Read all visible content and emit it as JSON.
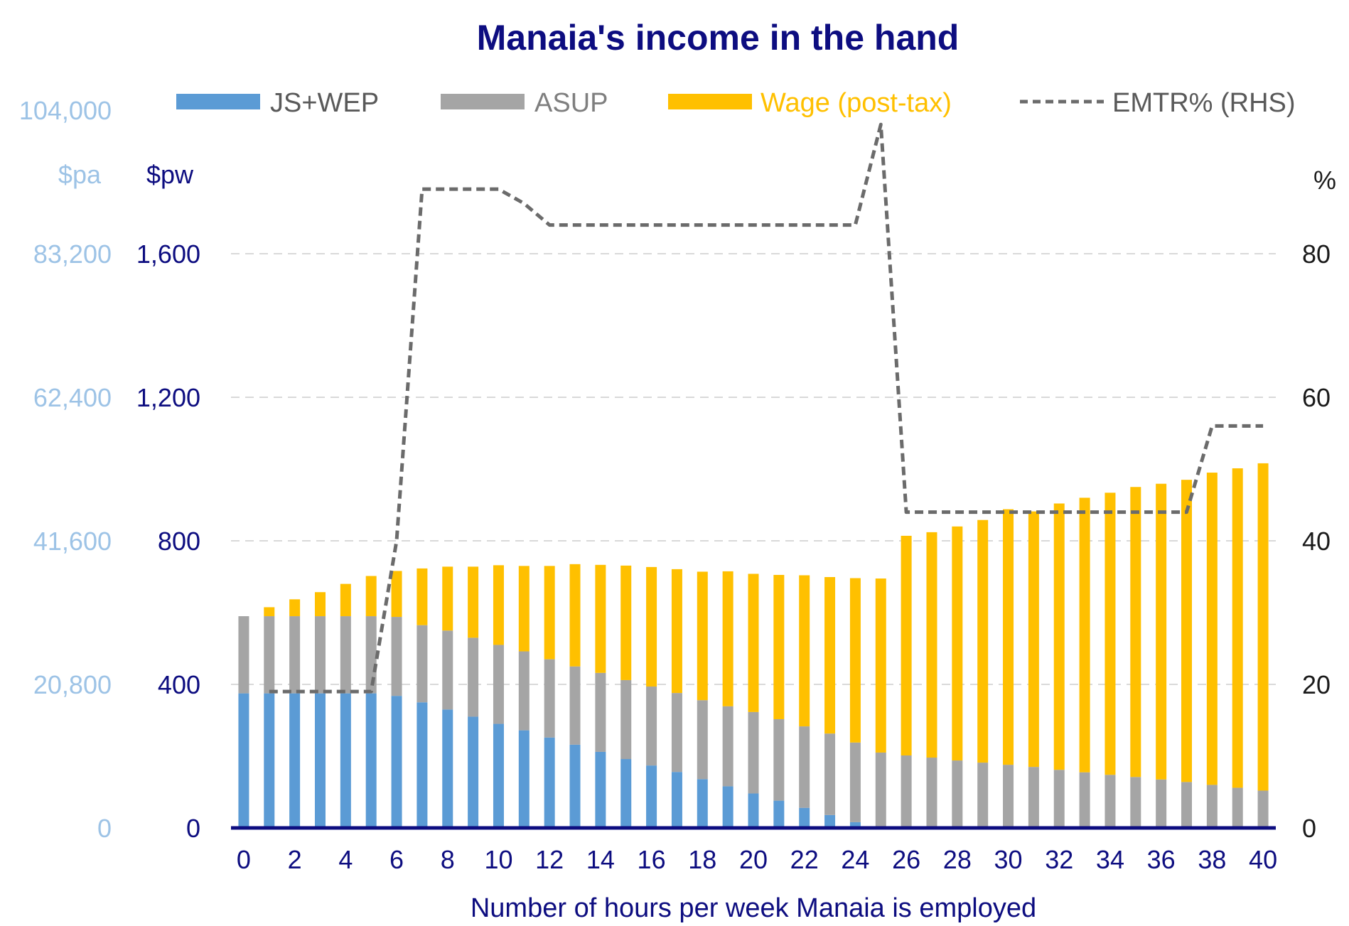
{
  "chart_data": {
    "type": "bar",
    "stacked": true,
    "title": "Manaia's income in the hand",
    "xlabel": "Number of hours per week Manaia is employed",
    "axis_units": {
      "left_outer": "$pa",
      "left_inner": "$pw",
      "right": "%"
    },
    "x": [
      0,
      1,
      2,
      3,
      4,
      5,
      6,
      7,
      8,
      9,
      10,
      11,
      12,
      13,
      14,
      15,
      16,
      17,
      18,
      19,
      20,
      21,
      22,
      23,
      24,
      25,
      26,
      27,
      28,
      29,
      30,
      31,
      32,
      33,
      34,
      35,
      36,
      37,
      38,
      39,
      40
    ],
    "x_tick_labels": [
      "0",
      "2",
      "4",
      "6",
      "8",
      "10",
      "12",
      "14",
      "16",
      "18",
      "20",
      "22",
      "24",
      "26",
      "28",
      "30",
      "32",
      "34",
      "36",
      "38",
      "40"
    ],
    "ylim_left": [
      0,
      2000
    ],
    "y_ticks_pw": [
      "0",
      "400",
      "800",
      "1,200",
      "1,600"
    ],
    "y_ticks_pa": [
      "0",
      "20,800",
      "41,600",
      "62,400",
      "83,200",
      "104,000"
    ],
    "ylim_right": [
      0,
      100
    ],
    "y_ticks_right": [
      "0",
      "20",
      "40",
      "60",
      "80"
    ],
    "grid": true,
    "legend_position": "top",
    "series": [
      {
        "name": "JS+WEP",
        "kind": "bar",
        "color": "#5b9bd5",
        "values": [
          375,
          375,
          375,
          375,
          375,
          375,
          368,
          350,
          330,
          310,
          290,
          272,
          252,
          232,
          212,
          192,
          174,
          156,
          136,
          116,
          96,
          76,
          56,
          36,
          16,
          0,
          0,
          0,
          0,
          0,
          0,
          0,
          0,
          0,
          0,
          0,
          0,
          0,
          0,
          0,
          0
        ]
      },
      {
        "name": "ASUP",
        "kind": "bar",
        "color": "#a5a5a5",
        "values": [
          215,
          215,
          215,
          215,
          215,
          215,
          220,
          215,
          220,
          220,
          220,
          220,
          218,
          218,
          220,
          220,
          220,
          220,
          220,
          223,
          227,
          227,
          227,
          227,
          222,
          210,
          202,
          196,
          188,
          182,
          176,
          170,
          162,
          155,
          148,
          142,
          135,
          128,
          120,
          112,
          104
        ]
      },
      {
        "name": "Wage (post-tax)",
        "kind": "bar",
        "color": "#ffc000",
        "values": [
          0,
          25,
          47,
          67,
          90,
          112,
          128,
          158,
          178,
          198,
          222,
          238,
          260,
          285,
          301,
          319,
          333,
          345,
          358,
          376,
          385,
          402,
          421,
          436,
          458,
          485,
          612,
          628,
          652,
          676,
          712,
          712,
          742,
          765,
          786,
          808,
          824,
          842,
          870,
          890,
          912
        ]
      },
      {
        "name": "EMTR% (RHS)",
        "kind": "line",
        "color": "#6b6b6b",
        "dashed": true,
        "x": [
          1,
          2,
          3,
          4,
          5,
          6,
          7,
          8,
          9,
          10,
          11,
          12,
          13,
          14,
          15,
          16,
          17,
          18,
          19,
          20,
          21,
          22,
          23,
          24,
          25,
          26,
          27,
          28,
          29,
          30,
          31,
          32,
          33,
          34,
          35,
          36,
          37,
          38,
          39,
          40
        ],
        "values": [
          19,
          19,
          19,
          19,
          19,
          40,
          89,
          89,
          89,
          89,
          87,
          84,
          84,
          84,
          84,
          84,
          84,
          84,
          84,
          84,
          84,
          84,
          84,
          84,
          98,
          44,
          44,
          44,
          44,
          44,
          44,
          44,
          44,
          44,
          44,
          44,
          44,
          56,
          56,
          56
        ]
      }
    ]
  }
}
